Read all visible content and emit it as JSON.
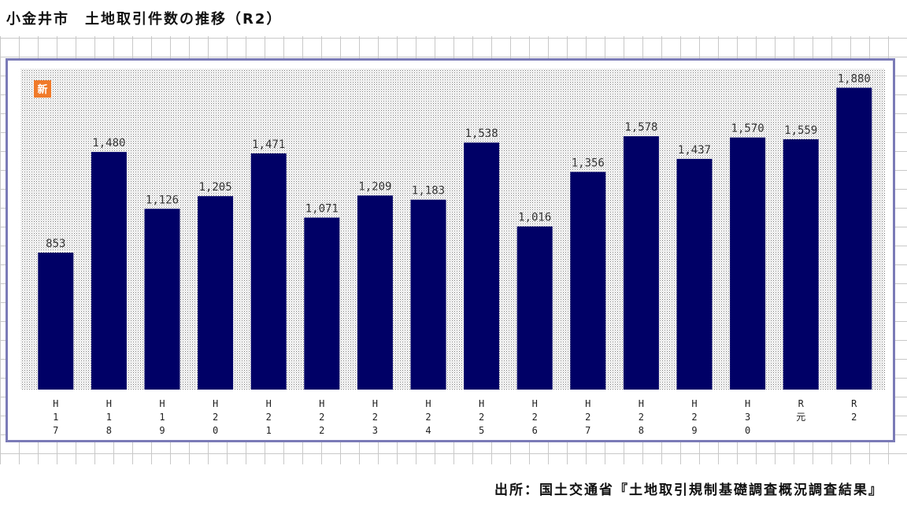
{
  "title": "小金井市　土地取引件数の推移（R2）",
  "badge": {
    "label": "新",
    "color": "#f07a2a"
  },
  "source": "出所：国土交通省『土地取引規制基礎調査概況調査結果』",
  "chart_data": {
    "type": "bar",
    "bar_color": "#000066",
    "categories": [
      "H17",
      "H18",
      "H19",
      "H20",
      "H21",
      "H22",
      "H23",
      "H24",
      "H25",
      "H26",
      "H27",
      "H28",
      "H29",
      "H30",
      "R元",
      "R2"
    ],
    "tick_labels": [
      [
        "H",
        "1",
        "7"
      ],
      [
        "H",
        "1",
        "8"
      ],
      [
        "H",
        "1",
        "9"
      ],
      [
        "H",
        "2",
        "0"
      ],
      [
        "H",
        "2",
        "1"
      ],
      [
        "H",
        "2",
        "2"
      ],
      [
        "H",
        "2",
        "3"
      ],
      [
        "H",
        "2",
        "4"
      ],
      [
        "H",
        "2",
        "5"
      ],
      [
        "H",
        "2",
        "6"
      ],
      [
        "H",
        "2",
        "7"
      ],
      [
        "H",
        "2",
        "8"
      ],
      [
        "H",
        "2",
        "9"
      ],
      [
        "H",
        "3",
        "0"
      ],
      [
        "R",
        "元"
      ],
      [
        "R",
        "2"
      ]
    ],
    "values": [
      853,
      1480,
      1126,
      1205,
      1471,
      1071,
      1209,
      1183,
      1538,
      1016,
      1356,
      1578,
      1437,
      1570,
      1559,
      1880
    ],
    "value_labels": [
      "853",
      "1,480",
      "1,126",
      "1,205",
      "1,471",
      "1,071",
      "1,209",
      "1,183",
      "1,538",
      "1,016",
      "1,356",
      "1,578",
      "1,437",
      "1,570",
      "1,559",
      "1,880"
    ],
    "ylim": [
      0,
      2000
    ],
    "grid": false
  }
}
